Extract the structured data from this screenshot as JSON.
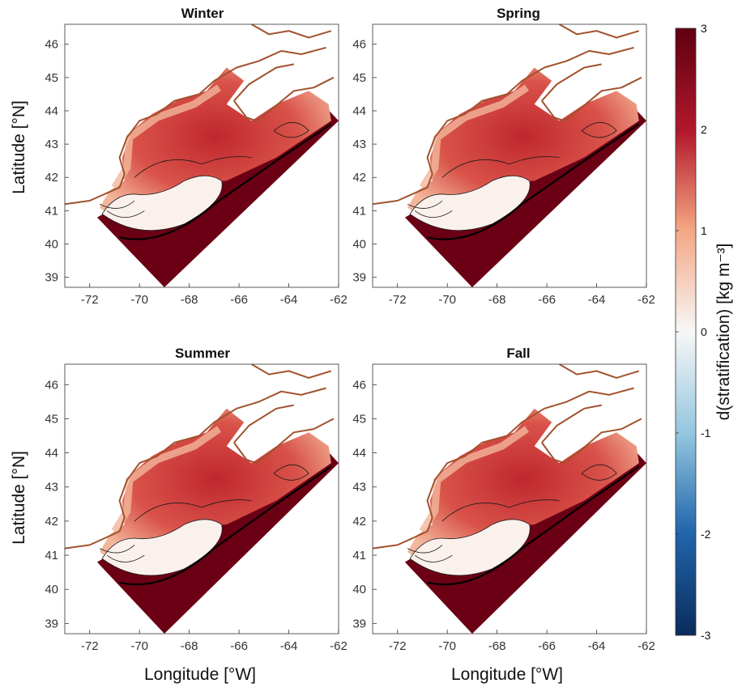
{
  "figure": {
    "panels": [
      {
        "title": "Winter"
      },
      {
        "title": "Spring"
      },
      {
        "title": "Summer"
      },
      {
        "title": "Fall"
      }
    ],
    "xlabel": "Longitude [°W]",
    "ylabel": "Latitude [°N]",
    "x_ticks": [
      "-72",
      "-70",
      "-68",
      "-66",
      "-64",
      "-62"
    ],
    "y_ticks": [
      "46",
      "45",
      "44",
      "43",
      "42",
      "41",
      "40",
      "39"
    ],
    "colorbar": {
      "label": "d(stratification) [kg m⁻³]",
      "ticks": [
        "3",
        "2",
        "1",
        "0",
        "-1",
        "-2",
        "-3"
      ],
      "colors": {
        "max": "#5e0010",
        "high": "#b2182b",
        "mid_high": "#f4a582",
        "zero": "#f7f7f7",
        "mid_low": "#92c5de",
        "low": "#2166ac",
        "min": "#0a2c5c"
      }
    },
    "colors": {
      "coastline": "#a0522d",
      "contour": "#1a1a1a",
      "deep_water": "#6b0015",
      "shelf_red": "#c0272d",
      "shelf_light": "#f3b79b",
      "bank_white": "#fbf1ec"
    }
  }
}
